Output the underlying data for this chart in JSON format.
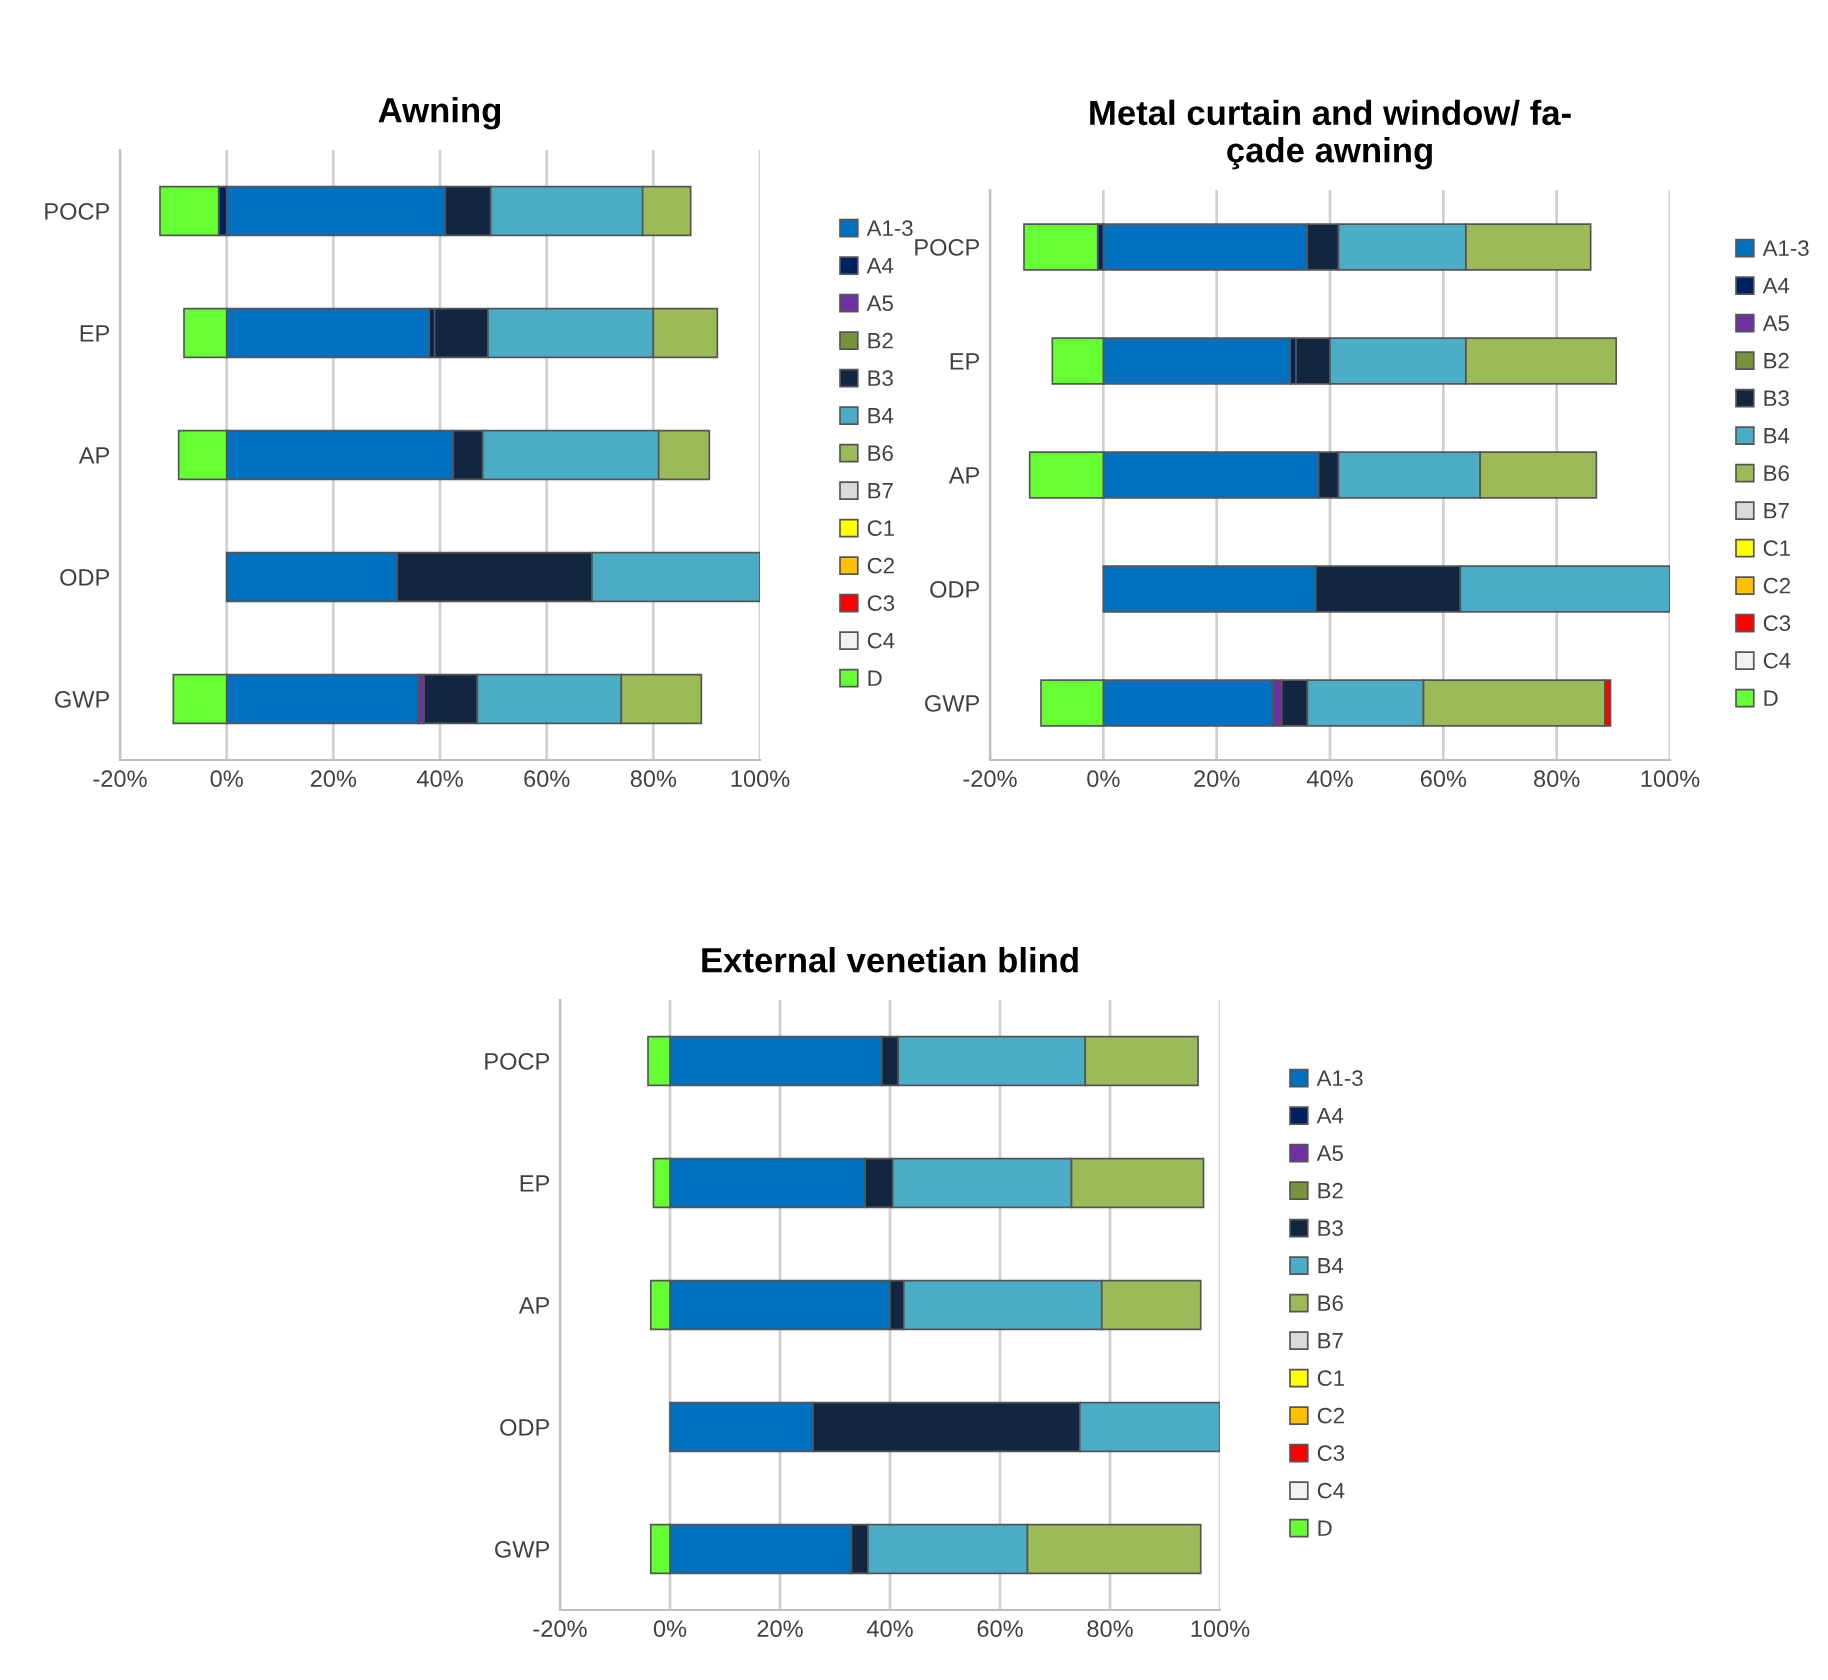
{
  "chart_data": [
    {
      "type": "bar",
      "orientation": "horizontal",
      "stacked": true,
      "title": "Awning",
      "categories": [
        "POCP",
        "EP",
        "AP",
        "ODP",
        "GWP"
      ],
      "xlim": [
        -20,
        100
      ],
      "xticks": [
        {
          "value": -20,
          "label": "-20%"
        },
        {
          "value": 0,
          "label": "0%"
        },
        {
          "value": 20,
          "label": "20%"
        },
        {
          "value": 40,
          "label": "40%"
        },
        {
          "value": 60,
          "label": "60%"
        },
        {
          "value": 80,
          "label": "80%"
        },
        {
          "value": 100,
          "label": "100%"
        }
      ],
      "grid": "x",
      "legend": "right",
      "series": [
        {
          "name": "A1-3",
          "color": "#0070c0",
          "values": [
            41,
            38,
            42.5,
            32,
            36
          ]
        },
        {
          "name": "A4",
          "color": "#002060",
          "values": [
            -1.5,
            1,
            null,
            null,
            null
          ]
        },
        {
          "name": "A5",
          "color": "#7030a0",
          "values": [
            null,
            null,
            null,
            null,
            1
          ]
        },
        {
          "name": "B2",
          "color": "#77933c",
          "values": [
            null,
            null,
            null,
            null,
            null
          ]
        },
        {
          "name": "B3",
          "color": "#12263f",
          "values": [
            8.5,
            10,
            5.5,
            36.5,
            10
          ]
        },
        {
          "name": "B4",
          "color": "#4bacc6",
          "values": [
            28.5,
            31,
            33,
            31.5,
            27
          ]
        },
        {
          "name": "B6",
          "color": "#9bbb59",
          "values": [
            9,
            12,
            9.5,
            null,
            15
          ]
        },
        {
          "name": "B7",
          "color": "#d9d9d9",
          "values": [
            null,
            null,
            null,
            null,
            null
          ]
        },
        {
          "name": "C1",
          "color": "#ffff00",
          "values": [
            null,
            null,
            null,
            null,
            null
          ]
        },
        {
          "name": "C2",
          "color": "#ffc000",
          "values": [
            null,
            null,
            null,
            null,
            null
          ]
        },
        {
          "name": "C3",
          "color": "#ff0000",
          "values": [
            null,
            null,
            null,
            null,
            null
          ]
        },
        {
          "name": "C4",
          "color": "#f2f2f2",
          "values": [
            null,
            null,
            null,
            null,
            null
          ]
        },
        {
          "name": "D",
          "color": "#66ff33",
          "values": [
            -11,
            -8,
            -9,
            null,
            -10
          ]
        }
      ]
    },
    {
      "type": "bar",
      "orientation": "horizontal",
      "stacked": true,
      "title": "Metal curtain and window/ fa-\nçade awning",
      "categories": [
        "POCP",
        "EP",
        "AP",
        "ODP",
        "GWP"
      ],
      "xlim": [
        -20,
        100
      ],
      "xticks": [
        {
          "value": -20,
          "label": "-20%"
        },
        {
          "value": 0,
          "label": "0%"
        },
        {
          "value": 20,
          "label": "20%"
        },
        {
          "value": 40,
          "label": "40%"
        },
        {
          "value": 60,
          "label": "60%"
        },
        {
          "value": 80,
          "label": "80%"
        },
        {
          "value": 100,
          "label": "100%"
        }
      ],
      "grid": "x",
      "legend": "right",
      "series": [
        {
          "name": "A1-3",
          "color": "#0070c0",
          "values": [
            36,
            33,
            38,
            37.5,
            30
          ]
        },
        {
          "name": "A4",
          "color": "#002060",
          "values": [
            -1,
            1,
            null,
            null,
            null
          ]
        },
        {
          "name": "A5",
          "color": "#7030a0",
          "values": [
            null,
            null,
            null,
            null,
            1.5
          ]
        },
        {
          "name": "B2",
          "color": "#77933c",
          "values": [
            null,
            null,
            null,
            null,
            null
          ]
        },
        {
          "name": "B3",
          "color": "#12263f",
          "values": [
            5.5,
            6,
            3.5,
            25.5,
            4.5
          ]
        },
        {
          "name": "B4",
          "color": "#4bacc6",
          "values": [
            22.5,
            24,
            25,
            37,
            20.5
          ]
        },
        {
          "name": "B6",
          "color": "#9bbb59",
          "values": [
            22,
            26.5,
            20.5,
            null,
            32
          ]
        },
        {
          "name": "B7",
          "color": "#d9d9d9",
          "values": [
            null,
            null,
            null,
            null,
            null
          ]
        },
        {
          "name": "C1",
          "color": "#ffff00",
          "values": [
            null,
            null,
            null,
            null,
            null
          ]
        },
        {
          "name": "C2",
          "color": "#ffc000",
          "values": [
            null,
            null,
            null,
            null,
            null
          ]
        },
        {
          "name": "C3",
          "color": "#ff0000",
          "values": [
            null,
            null,
            null,
            null,
            1
          ]
        },
        {
          "name": "C4",
          "color": "#f2f2f2",
          "values": [
            null,
            null,
            null,
            null,
            null
          ]
        },
        {
          "name": "D",
          "color": "#66ff33",
          "values": [
            -13,
            -9,
            -13,
            null,
            -11
          ]
        }
      ]
    },
    {
      "type": "bar",
      "orientation": "horizontal",
      "stacked": true,
      "title": "External venetian blind",
      "categories": [
        "POCP",
        "EP",
        "AP",
        "ODP",
        "GWP"
      ],
      "xlim": [
        -20,
        100
      ],
      "xticks": [
        {
          "value": -20,
          "label": "-20%"
        },
        {
          "value": 0,
          "label": "0%"
        },
        {
          "value": 20,
          "label": "20%"
        },
        {
          "value": 40,
          "label": "40%"
        },
        {
          "value": 60,
          "label": "60%"
        },
        {
          "value": 80,
          "label": "80%"
        },
        {
          "value": 100,
          "label": "100%"
        }
      ],
      "grid": "x",
      "legend": "right",
      "series": [
        {
          "name": "A1-3",
          "color": "#0070c0",
          "values": [
            38.5,
            35.5,
            40,
            26,
            33
          ]
        },
        {
          "name": "A4",
          "color": "#002060",
          "values": [
            null,
            null,
            null,
            null,
            null
          ]
        },
        {
          "name": "A5",
          "color": "#7030a0",
          "values": [
            null,
            null,
            null,
            null,
            null
          ]
        },
        {
          "name": "B2",
          "color": "#77933c",
          "values": [
            null,
            null,
            null,
            null,
            null
          ]
        },
        {
          "name": "B3",
          "color": "#12263f",
          "values": [
            3,
            5,
            2.5,
            48.5,
            3
          ]
        },
        {
          "name": "B4",
          "color": "#4bacc6",
          "values": [
            34,
            32.5,
            36,
            25.5,
            29
          ]
        },
        {
          "name": "B6",
          "color": "#9bbb59",
          "values": [
            20.5,
            24,
            18,
            null,
            31.5
          ]
        },
        {
          "name": "B7",
          "color": "#d9d9d9",
          "values": [
            null,
            null,
            null,
            null,
            null
          ]
        },
        {
          "name": "C1",
          "color": "#ffff00",
          "values": [
            null,
            null,
            null,
            null,
            null
          ]
        },
        {
          "name": "C2",
          "color": "#ffc000",
          "values": [
            null,
            null,
            null,
            null,
            null
          ]
        },
        {
          "name": "C3",
          "color": "#ff0000",
          "values": [
            null,
            null,
            null,
            null,
            null
          ]
        },
        {
          "name": "C4",
          "color": "#f2f2f2",
          "values": [
            null,
            null,
            null,
            null,
            null
          ]
        },
        {
          "name": "D",
          "color": "#66ff33",
          "values": [
            -4,
            -3,
            -3.5,
            null,
            -3.5
          ]
        }
      ]
    }
  ]
}
